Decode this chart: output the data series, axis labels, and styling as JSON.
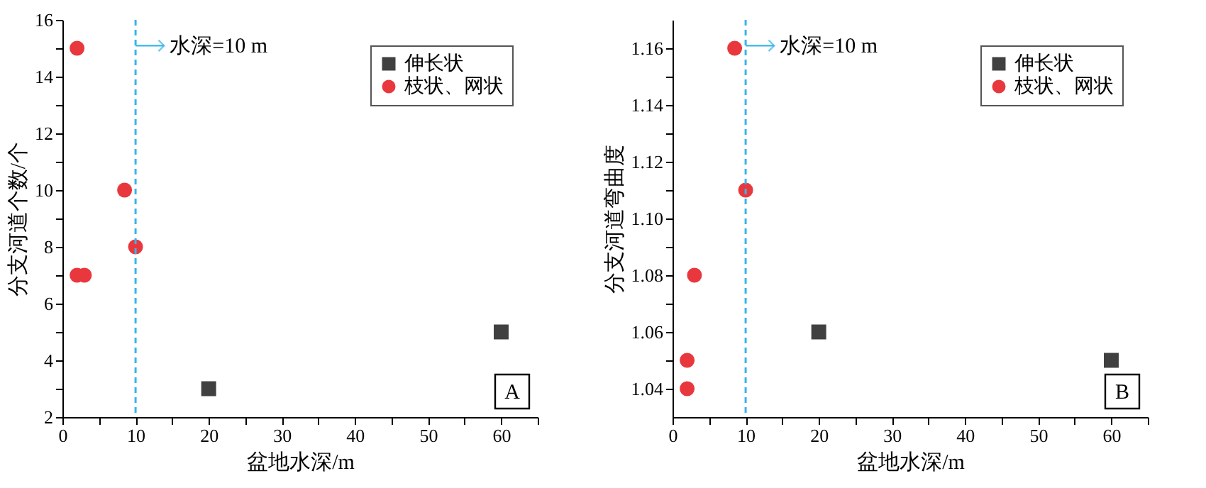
{
  "chart_data": [
    {
      "type": "scatter",
      "xlabel": "盆地水深/m",
      "ylabel": "分支河道个数/个",
      "xlim": [
        0,
        65
      ],
      "ylim": [
        2,
        16
      ],
      "xticks": [
        0,
        {
          "value": 5,
          "label": null
        },
        10,
        {
          "value": 15,
          "label": null
        },
        20,
        {
          "value": 25,
          "label": null
        },
        30,
        {
          "value": 35,
          "label": null
        },
        40,
        {
          "value": 45,
          "label": null
        },
        50,
        {
          "value": 55,
          "label": null
        },
        60,
        {
          "value": 65,
          "label": null
        }
      ],
      "yticks": [
        2,
        {
          "value": 3,
          "label": null
        },
        4,
        {
          "value": 5,
          "label": null
        },
        6,
        {
          "value": 7,
          "label": null
        },
        8,
        {
          "value": 9,
          "label": null
        },
        10,
        {
          "value": 11,
          "label": null
        },
        12,
        {
          "value": 13,
          "label": null
        },
        14,
        {
          "value": 15,
          "label": null
        },
        16
      ],
      "series": [
        {
          "name": "伸长状",
          "color": "#404040",
          "marker": "square",
          "x": [
            20,
            60
          ],
          "values": [
            3,
            5
          ]
        },
        {
          "name": "枝状、网状",
          "color": "#e8383d",
          "marker": "circle",
          "x": [
            2,
            8.5,
            10,
            2,
            3
          ],
          "values": [
            15,
            10,
            8,
            7,
            7
          ]
        }
      ],
      "ref_lines": [
        {
          "axis": "x",
          "value": 10,
          "label": "水深=10 m",
          "color": "#3ab4e8",
          "line_style": "dashed"
        }
      ],
      "annotations": [
        "A"
      ],
      "legend": "top right",
      "grid": false
    },
    {
      "type": "scatter",
      "xlabel": "盆地水深/m",
      "ylabel": "分支河道弯曲度",
      "xlim": [
        0,
        65
      ],
      "ylim": [
        1.03,
        1.17
      ],
      "xticks": [
        0,
        {
          "value": 5,
          "label": null
        },
        10,
        {
          "value": 15,
          "label": null
        },
        20,
        {
          "value": 25,
          "label": null
        },
        30,
        {
          "value": 35,
          "label": null
        },
        40,
        {
          "value": 45,
          "label": null
        },
        50,
        {
          "value": 55,
          "label": null
        },
        60,
        {
          "value": 65,
          "label": null
        }
      ],
      "yticks": [
        {
          "value": 1.04,
          "label": "1.04"
        },
        {
          "value": 1.05,
          "label": null
        },
        {
          "value": 1.06,
          "label": "1.06"
        },
        {
          "value": 1.07,
          "label": null
        },
        {
          "value": 1.08,
          "label": "1.08"
        },
        {
          "value": 1.09,
          "label": null
        },
        {
          "value": 1.1,
          "label": "1.10"
        },
        {
          "value": 1.11,
          "label": null
        },
        {
          "value": 1.12,
          "label": "1.12"
        },
        {
          "value": 1.13,
          "label": null
        },
        {
          "value": 1.14,
          "label": "1.14"
        },
        {
          "value": 1.15,
          "label": null
        },
        {
          "value": 1.16,
          "label": "1.16"
        }
      ],
      "series": [
        {
          "name": "伸长状",
          "color": "#404040",
          "marker": "square",
          "x": [
            20,
            60
          ],
          "values": [
            1.06,
            1.05
          ]
        },
        {
          "name": "枝状、网状",
          "color": "#e8383d",
          "marker": "circle",
          "x": [
            8.5,
            10,
            3,
            2,
            2
          ],
          "values": [
            1.16,
            1.11,
            1.08,
            1.05,
            1.04
          ]
        }
      ],
      "ref_lines": [
        {
          "axis": "x",
          "value": 10,
          "label": "水深=10 m",
          "color": "#3ab4e8",
          "line_style": "dashed"
        }
      ],
      "annotations": [
        "B"
      ],
      "legend": "top right",
      "grid": false
    }
  ]
}
